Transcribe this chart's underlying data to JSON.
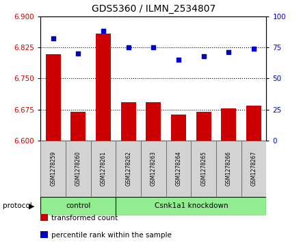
{
  "title": "GDS5360 / ILMN_2534807",
  "samples": [
    "GSM1278259",
    "GSM1278260",
    "GSM1278261",
    "GSM1278262",
    "GSM1278263",
    "GSM1278264",
    "GSM1278265",
    "GSM1278266",
    "GSM1278267"
  ],
  "bar_values": [
    6.808,
    6.67,
    6.858,
    6.693,
    6.693,
    6.663,
    6.67,
    6.678,
    6.685
  ],
  "scatter_values": [
    82,
    70,
    88,
    75,
    75,
    65,
    68,
    71,
    74
  ],
  "ylim_left": [
    6.6,
    6.9
  ],
  "ylim_right": [
    0,
    100
  ],
  "yticks_left": [
    6.6,
    6.675,
    6.75,
    6.825,
    6.9
  ],
  "yticks_right": [
    0,
    25,
    50,
    75,
    100
  ],
  "hlines": [
    6.825,
    6.75,
    6.675
  ],
  "bar_color": "#cc0000",
  "scatter_color": "#0000cc",
  "bar_bottom": 6.6,
  "protocol_groups": [
    {
      "label": "control",
      "start": 0,
      "end": 3,
      "color": "#90ee90"
    },
    {
      "label": "Csnk1a1 knockdown",
      "start": 3,
      "end": 9,
      "color": "#90ee90"
    }
  ],
  "legend_items": [
    {
      "label": "transformed count",
      "color": "#cc0000"
    },
    {
      "label": "percentile rank within the sample",
      "color": "#0000cc"
    }
  ],
  "protocol_label": "protocol",
  "tick_label_color_left": "#cc0000",
  "tick_label_color_right": "#0000cc",
  "sample_box_color": "#d3d3d3",
  "plot_bg_color": "#ffffff"
}
